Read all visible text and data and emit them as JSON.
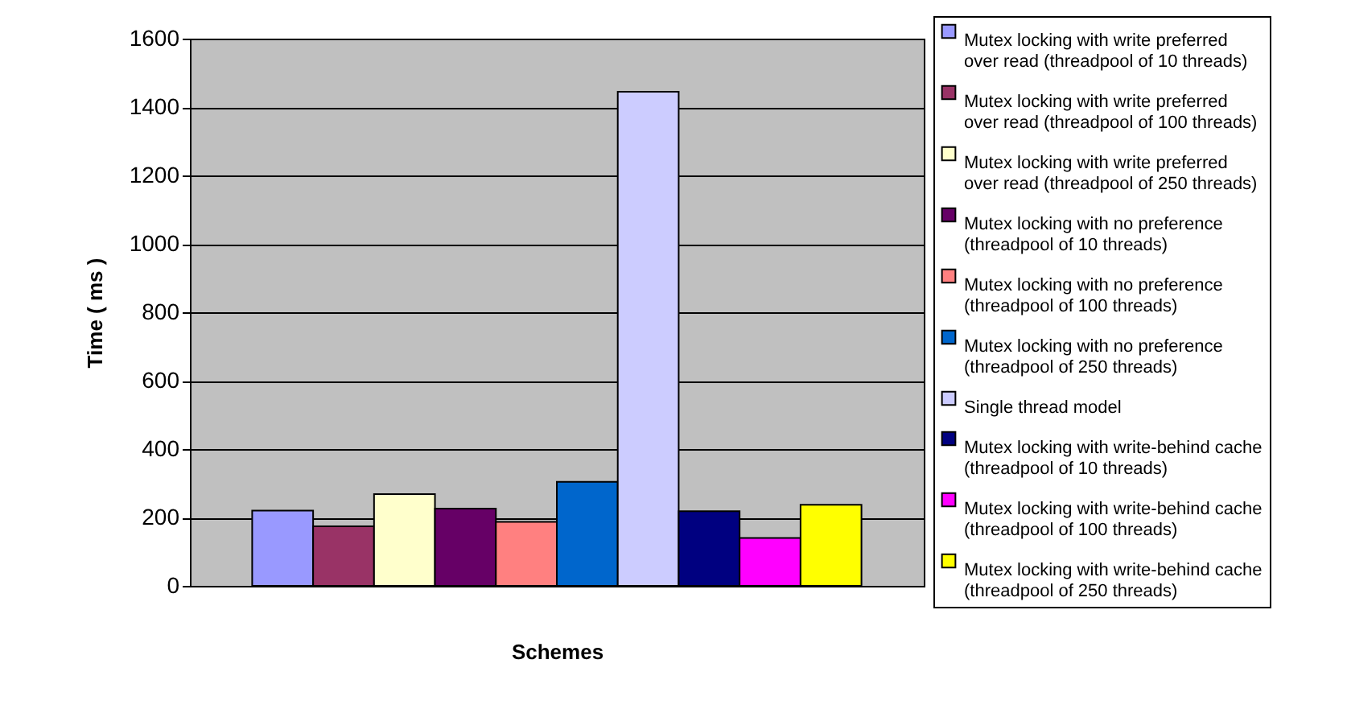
{
  "chart_data": {
    "type": "bar",
    "xlabel": "Schemes",
    "ylabel": "Time ( ms )",
    "categories": [
      null
    ],
    "ylim": [
      0,
      1600
    ],
    "yticks": [
      0,
      200,
      400,
      600,
      800,
      1000,
      1200,
      1400,
      1600
    ],
    "grid": "y",
    "legend": "right",
    "series": [
      {
        "name": "Mutex locking with write preferred over read (threadpool of 10 threads)",
        "color": "#9999ff",
        "values": [
          220
        ]
      },
      {
        "name": "Mutex locking with write preferred over read (threadpool of 100 threads)",
        "color": "#993366",
        "values": [
          174
        ]
      },
      {
        "name": "Mutex locking with write preferred over read (threadpool of 250 threads)",
        "color": "#ffffcc",
        "values": [
          268
        ]
      },
      {
        "name": "Mutex locking with no preference (threadpool of 10 threads)",
        "color": "#660066",
        "values": [
          226
        ]
      },
      {
        "name": "Mutex locking with no preference (threadpool of 100 threads)",
        "color": "#ff8080",
        "values": [
          187
        ]
      },
      {
        "name": "Mutex locking with no preference (threadpool of 250 threads)",
        "color": "#0066cc",
        "values": [
          304
        ]
      },
      {
        "name": "Single thread model",
        "color": "#ccccff",
        "values": [
          1445
        ]
      },
      {
        "name": "Mutex locking with write-behind cache (threadpool of 10 threads)",
        "color": "#000080",
        "values": [
          218
        ]
      },
      {
        "name": "Mutex locking with write-behind cache (threadpool of 100 threads)",
        "color": "#ff00ff",
        "values": [
          140
        ]
      },
      {
        "name": "Mutex locking with write-behind cache (threadpool of 250 threads)",
        "color": "#ffff00",
        "values": [
          237
        ]
      }
    ]
  }
}
